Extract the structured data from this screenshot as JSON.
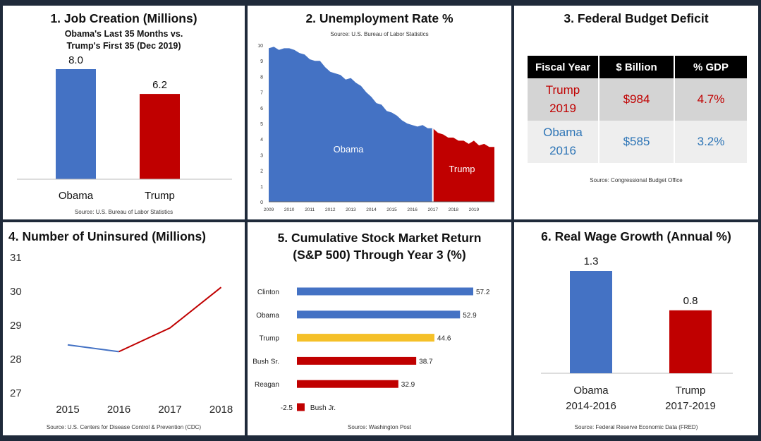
{
  "colors": {
    "obama": "#4472c4",
    "trump": "#c00000",
    "yellow": "#f5c028"
  },
  "panel1": {
    "title": "1. Job Creation (Millions)",
    "subtitle1": "Obama's Last 35 Months vs.",
    "subtitle2": "Trump's First 35 (Dec 2019)",
    "source": "Source:  U.S. Bureau of Labor Statistics"
  },
  "panel2": {
    "title": "2. Unemployment Rate %",
    "source": "Source:  U.S. Bureau of Labor Statistics",
    "obama_label": "Obama",
    "trump_label": "Trump"
  },
  "panel3": {
    "title": "3. Federal Budget Deficit",
    "headers": [
      "Fiscal Year",
      "$ Billion",
      "% GDP"
    ],
    "rows": [
      {
        "year_line1": "Trump",
        "year_line2": "2019",
        "billion": "$984",
        "gdp": "4.7%"
      },
      {
        "year_line1": "Obama",
        "year_line2": "2016",
        "billion": "$585",
        "gdp": "3.2%"
      }
    ],
    "source": "Source:  Congressional Budget Office"
  },
  "panel4": {
    "title": "4. Number of Uninsured (Millions)",
    "source": "Source:  U.S. Centers for Disease Control & Prevention (CDC)"
  },
  "panel5": {
    "title_line1": "5. Cumulative Stock Market Return",
    "title_line2": "(S&P 500) Through Year 3 (%)",
    "source": "Source:  Washington Post"
  },
  "panel6": {
    "title": "6. Real Wage Growth (Annual %)",
    "source": "Source:  Federal Reserve Economic Data (FRED)"
  },
  "chart_data": [
    {
      "type": "bar",
      "categories": [
        "Obama",
        "Trump"
      ],
      "values": [
        8.0,
        6.2
      ],
      "value_labels": [
        "8.0",
        "6.2"
      ],
      "ylim": [
        0,
        10
      ]
    },
    {
      "type": "area",
      "x_ticks": [
        "2009",
        "2010",
        "2011",
        "2012",
        "2013",
        "2014",
        "2015",
        "2016",
        "2017",
        "2018",
        "2019"
      ],
      "y_ticks": [
        0,
        1,
        2,
        3,
        4,
        5,
        6,
        7,
        8,
        9,
        10
      ],
      "ylim": [
        0,
        10
      ],
      "xlim": [
        2009,
        2020
      ],
      "series": [
        {
          "name": "Obama",
          "x": [
            2009.0,
            2009.25,
            2009.5,
            2009.75,
            2010.0,
            2010.25,
            2010.5,
            2010.75,
            2011.0,
            2011.25,
            2011.5,
            2011.75,
            2012.0,
            2012.25,
            2012.5,
            2012.75,
            2013.0,
            2013.25,
            2013.5,
            2013.75,
            2014.0,
            2014.25,
            2014.5,
            2014.75,
            2015.0,
            2015.25,
            2015.5,
            2015.75,
            2016.0,
            2016.25,
            2016.5,
            2016.75,
            2017.0
          ],
          "values": [
            9.8,
            9.9,
            9.7,
            9.8,
            9.8,
            9.7,
            9.5,
            9.4,
            9.1,
            9.0,
            9.0,
            8.6,
            8.3,
            8.2,
            8.1,
            7.8,
            7.9,
            7.6,
            7.4,
            7.0,
            6.7,
            6.3,
            6.2,
            5.8,
            5.7,
            5.5,
            5.2,
            5.0,
            4.9,
            4.8,
            4.9,
            4.7,
            4.7
          ]
        },
        {
          "name": "Trump",
          "x": [
            2017.0,
            2017.25,
            2017.5,
            2017.75,
            2018.0,
            2018.25,
            2018.5,
            2018.75,
            2019.0,
            2019.25,
            2019.5,
            2019.75,
            2020.0
          ],
          "values": [
            4.7,
            4.4,
            4.3,
            4.1,
            4.1,
            3.9,
            3.9,
            3.7,
            3.9,
            3.6,
            3.7,
            3.5,
            3.5
          ]
        }
      ]
    },
    {
      "type": "table",
      "columns": [
        "Fiscal Year",
        "$ Billion",
        "% GDP"
      ],
      "rows": [
        [
          "Trump 2019",
          "$984",
          "4.7%"
        ],
        [
          "Obama 2016",
          "$585",
          "3.2%"
        ]
      ]
    },
    {
      "type": "line",
      "x": [
        2015,
        2016,
        2017,
        2018
      ],
      "x_ticks": [
        "2015",
        "2016",
        "2017",
        "2018"
      ],
      "y_ticks": [
        27,
        28,
        29,
        30,
        31
      ],
      "ylim": [
        26.6,
        31
      ],
      "series": [
        {
          "name": "Obama",
          "x": [
            2015,
            2016
          ],
          "values": [
            28.4,
            28.2
          ]
        },
        {
          "name": "Trump",
          "x": [
            2016,
            2017,
            2018
          ],
          "values": [
            28.2,
            28.9,
            30.1
          ]
        }
      ]
    },
    {
      "type": "bar",
      "orientation": "horizontal",
      "categories": [
        "Clinton",
        "Obama",
        "Trump",
        "Bush Sr.",
        "Reagan",
        "Bush Jr."
      ],
      "values": [
        57.2,
        52.9,
        44.6,
        38.7,
        32.9,
        -2.5
      ],
      "value_labels": [
        "57.2",
        "52.9",
        "44.6",
        "38.7",
        "32.9",
        "-2.5"
      ],
      "bar_colors": [
        "#4472c4",
        "#4472c4",
        "#f5c028",
        "#c00000",
        "#c00000",
        "#c00000"
      ]
    },
    {
      "type": "bar",
      "categories": [
        "Obama\n2014-2016",
        "Trump\n2017-2019"
      ],
      "category_lines": [
        [
          "Obama",
          "2014-2016"
        ],
        [
          "Trump",
          "2017-2019"
        ]
      ],
      "values": [
        1.3,
        0.8
      ],
      "value_labels": [
        "1.3",
        "0.8"
      ],
      "ylim": [
        0,
        1.6
      ]
    }
  ]
}
